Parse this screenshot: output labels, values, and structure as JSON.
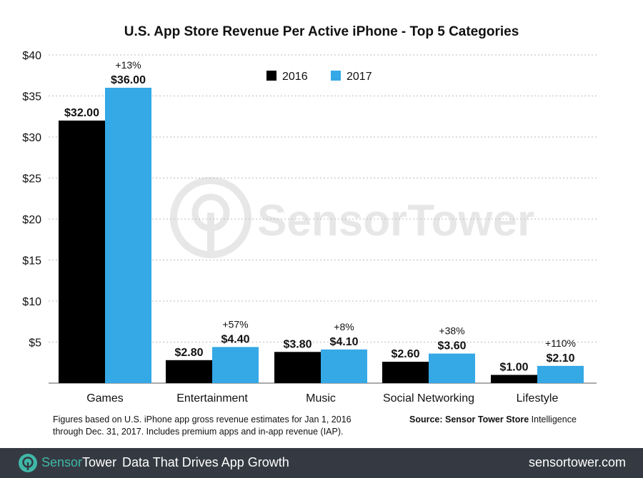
{
  "chart_data": {
    "type": "bar",
    "title": "U.S. App Store Revenue Per Active iPhone - Top 5 Categories",
    "categories": [
      "Games",
      "Entertainment",
      "Music",
      "Social Networking",
      "Lifestyle"
    ],
    "series": [
      {
        "name": "2016",
        "color": "#000000",
        "values": [
          32.0,
          2.8,
          3.8,
          2.6,
          1.0
        ],
        "labels": [
          "$32.00",
          "$2.80",
          "$3.80",
          "$2.60",
          "$1.00"
        ]
      },
      {
        "name": "2017",
        "color": "#35a8e6",
        "values": [
          36.0,
          4.4,
          4.1,
          3.6,
          2.1
        ],
        "labels": [
          "$36.00",
          "$4.40",
          "$4.10",
          "$3.60",
          "$2.10"
        ]
      }
    ],
    "growth_labels": [
      "+13%",
      "+57%",
      "+8%",
      "+38%",
      "+110%"
    ],
    "yticks": [
      "$5",
      "$10",
      "$15",
      "$20",
      "$25",
      "$30",
      "$35",
      "$40"
    ],
    "ytick_values": [
      5,
      10,
      15,
      20,
      25,
      30,
      35,
      40
    ],
    "ylim": [
      0,
      40
    ],
    "xlabel": "",
    "ylabel": "",
    "grid": true,
    "legend": "top-center",
    "watermark": "SensorTower"
  },
  "notes": {
    "line1": "Figures based on U.S. iPhone app gross revenue estimates for Jan 1, 2016",
    "line2": "through Dec. 31, 2017. Includes premium apps and in-app revenue (IAP).",
    "source_bold": "Source: Sensor Tower Store",
    "source_rest": "Intelligence"
  },
  "footer": {
    "brand_a": "Sensor",
    "brand_b": "Tower",
    "tagline": "Data That Drives App Growth",
    "url": "sensortower.com"
  }
}
